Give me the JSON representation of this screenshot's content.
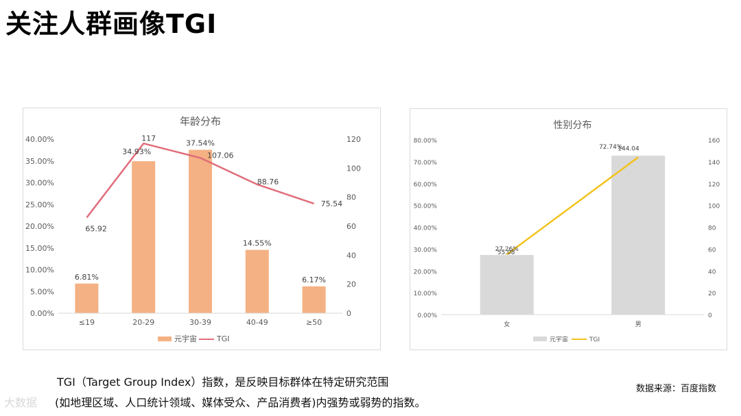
{
  "page": {
    "title": "关注人群画像TGI",
    "description_line1": "TGI（Target Group Index）指数，是反映目标群体在特定研究范围",
    "description_line2": "(如地理区域、人口统计领域、媒体受众、产品消费者)内强势或弱势的指数。",
    "source": "数据来源：百度指数",
    "watermark": "大数据"
  },
  "chart_data": [
    {
      "type": "bar",
      "title": "年龄分布",
      "categories": [
        "≤19",
        "20-29",
        "30-39",
        "40-49",
        "≥50"
      ],
      "series": [
        {
          "name": "元宇宙",
          "type": "bar",
          "axis": "left",
          "values": [
            6.81,
            34.93,
            37.54,
            14.55,
            6.17
          ],
          "labels": [
            "6.81%",
            "34.93%",
            "37.54%",
            "14.55%",
            "6.17%"
          ],
          "color": "#f4b183"
        },
        {
          "name": "TGI",
          "type": "line",
          "axis": "right",
          "values": [
            65.92,
            117,
            107.06,
            88.76,
            75.54
          ],
          "labels": [
            "65.92",
            "117",
            "107.06",
            "88.76",
            "75.54"
          ],
          "color": "#e06c7a"
        }
      ],
      "y_left": {
        "min": 0,
        "max": 40,
        "ticks": [
          "0.00%",
          "5.00%",
          "10.00%",
          "15.00%",
          "20.00%",
          "25.00%",
          "30.00%",
          "35.00%",
          "40.00%"
        ]
      },
      "y_right": {
        "min": 0,
        "max": 120,
        "ticks": [
          "0",
          "20",
          "40",
          "60",
          "80",
          "100",
          "120"
        ]
      },
      "grid": false,
      "legend": "bottom"
    },
    {
      "type": "bar",
      "title": "性别分布",
      "categories": [
        "女",
        "男"
      ],
      "series": [
        {
          "name": "元宇宙",
          "type": "bar",
          "axis": "left",
          "values": [
            27.26,
            72.74
          ],
          "labels": [
            "27.26%",
            "72.74%"
          ],
          "color": "#d9d9d9"
        },
        {
          "name": "TGI",
          "type": "line",
          "axis": "right",
          "values": [
            55.08,
            144.04
          ],
          "labels": [
            "55.08",
            "144.04"
          ],
          "color": "#f2c21b"
        }
      ],
      "y_left": {
        "min": 0,
        "max": 80,
        "ticks": [
          "0.00%",
          "10.00%",
          "20.00%",
          "30.00%",
          "40.00%",
          "50.00%",
          "60.00%",
          "70.00%",
          "80.00%"
        ]
      },
      "y_right": {
        "min": 0,
        "max": 160,
        "ticks": [
          "0",
          "20",
          "40",
          "60",
          "80",
          "100",
          "120",
          "140",
          "160"
        ]
      },
      "grid": false,
      "legend": "bottom"
    }
  ]
}
